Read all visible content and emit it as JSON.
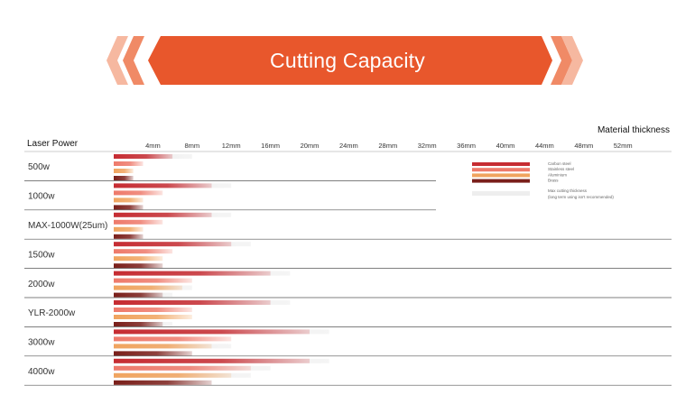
{
  "banner": {
    "title": "Cutting Capacity",
    "color": "#e8572c",
    "chevron_light": "#f6b8a0"
  },
  "chart_data": {
    "type": "bar",
    "orientation": "horizontal",
    "title": "Cutting Capacity",
    "xlabel": "Material  thickness",
    "ylabel": "Laser Power",
    "x_unit_step": 4,
    "xlim": [
      0,
      56
    ],
    "tick_labels": [
      "4mm",
      "8mm",
      "12mm",
      "16mm",
      "20mm",
      "24mm",
      "28mm",
      "32mm",
      "36mm",
      "40mm",
      "44mm",
      "48mm",
      "52mm"
    ],
    "categories": [
      "500w",
      "1000w",
      "MAX-1000W(25um)",
      "1500w",
      "2000w",
      "YLR-2000w",
      "3000w",
      "4000w"
    ],
    "series": [
      {
        "name": "Carbon steel",
        "color": "#c62c32",
        "cut": [
          6,
          10,
          10,
          12,
          16,
          16,
          20,
          20
        ],
        "max": [
          8,
          12,
          12,
          14,
          18,
          18,
          22,
          22
        ]
      },
      {
        "name": "Stainless steel",
        "color": "#ee7a6b",
        "cut": [
          3,
          5,
          5,
          6,
          8,
          8,
          12,
          14
        ],
        "max": [
          3,
          5,
          5,
          6,
          8,
          8,
          12,
          16
        ]
      },
      {
        "name": "Aluminium",
        "color": "#f0a45f",
        "cut": [
          2,
          3,
          3,
          5,
          7,
          8,
          10,
          12
        ],
        "max": [
          2,
          3,
          3,
          5,
          8,
          8,
          12,
          14
        ]
      },
      {
        "name": "Brass",
        "color": "#7a1f1a",
        "cut": [
          2,
          3,
          3,
          5,
          5,
          5,
          8,
          10
        ],
        "max": [
          2,
          3,
          3,
          5,
          6,
          6,
          8,
          10
        ]
      }
    ],
    "legend": {
      "placement": "top-right",
      "items": [
        "Carbon steel",
        "Stainless steel",
        "Aluminium",
        "Brass"
      ],
      "max_label": "Max cutting thickness",
      "max_note": "(long term using isn't recommended)",
      "max_color": "#eeeeee"
    }
  }
}
